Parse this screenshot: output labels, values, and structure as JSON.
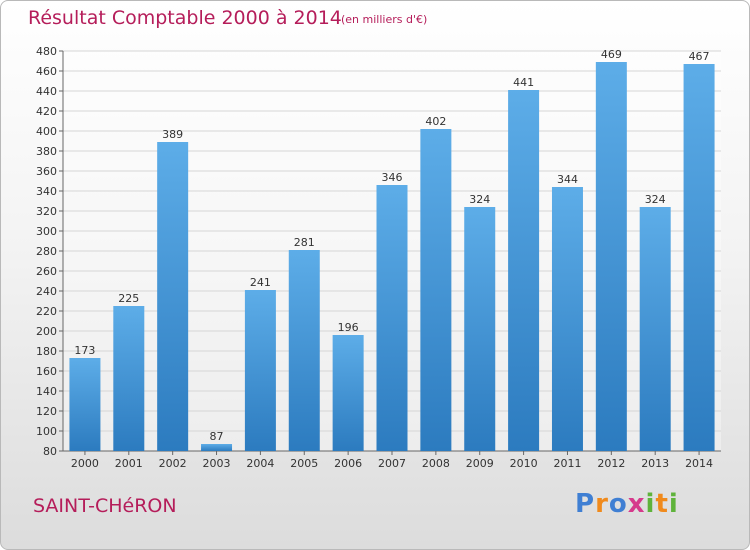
{
  "header": {
    "title": "Résultat Comptable 2000 à 2014",
    "subtitle": "(en milliers d'€)"
  },
  "footer": {
    "commune": "SAINT-CHéRON",
    "logo_text": "Proxiti"
  },
  "colors": {
    "title": "#b51d5a",
    "bar_light": "#5dade8",
    "bar_dark": "#2c7bbf",
    "grid": "#d6d6d6"
  },
  "chart_data": {
    "type": "bar",
    "title": "Résultat Comptable 2000 à 2014",
    "subtitle": "(en milliers d'€)",
    "xlabel": "",
    "ylabel": "",
    "categories": [
      "2000",
      "2001",
      "2002",
      "2003",
      "2004",
      "2005",
      "2006",
      "2007",
      "2008",
      "2009",
      "2010",
      "2011",
      "2012",
      "2013",
      "2014"
    ],
    "values": [
      173,
      225,
      389,
      87,
      241,
      281,
      196,
      346,
      402,
      324,
      441,
      344,
      469,
      324,
      467
    ],
    "ylim": [
      80,
      480
    ],
    "ytick_step": 20,
    "grid": true,
    "data_labels": true
  }
}
